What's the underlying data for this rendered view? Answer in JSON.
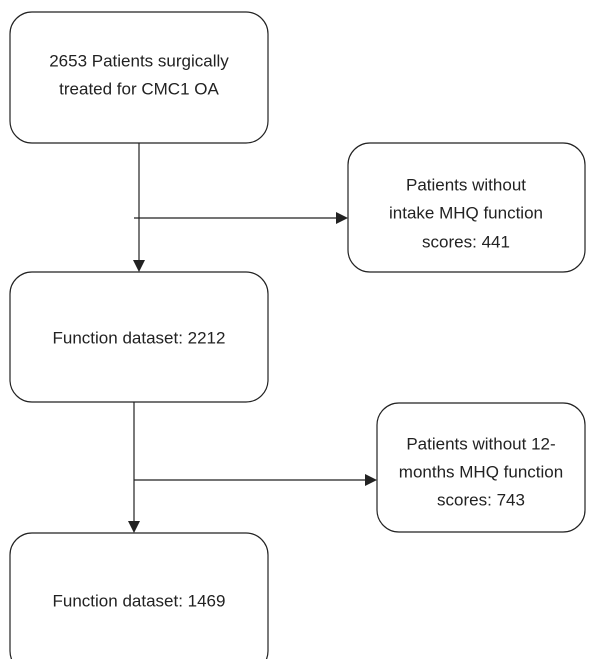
{
  "nodes": [
    {
      "lines": [
        "2653 Patients surgically",
        "treated for CMC1 OA"
      ]
    },
    {
      "lines": [
        "Patients without",
        "intake MHQ function",
        "scores: 441"
      ]
    },
    {
      "lines": [
        "Function dataset: 2212"
      ]
    },
    {
      "lines": [
        "Patients without 12-",
        "months MHQ function",
        "scores: 743"
      ]
    },
    {
      "lines": [
        "Function dataset: 1469"
      ]
    }
  ]
}
